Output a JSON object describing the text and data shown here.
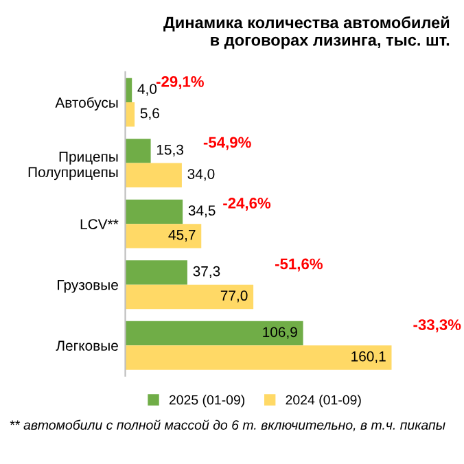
{
  "chart_data": {
    "type": "bar",
    "orientation": "horizontal",
    "title": "Динамика количества автомобилей\nв договорах лизинга, тыс. шт.",
    "categories": [
      "Автобусы",
      "Прицепы\nПолуприцепы",
      "LCV**",
      "Грузовые",
      "Легковые"
    ],
    "series": [
      {
        "name": "2025 (01-09)",
        "color": "#70ad47",
        "values": [
          4.0,
          15.3,
          34.5,
          37.3,
          106.9
        ],
        "value_labels": [
          "4,0",
          "15,3",
          "34,5",
          "37,3",
          "106,9"
        ]
      },
      {
        "name": "2024 (01-09)",
        "color": "#ffd966",
        "values": [
          5.6,
          34.0,
          45.7,
          77.0,
          160.1
        ],
        "value_labels": [
          "5,6",
          "34,0",
          "45,7",
          "77,0",
          "160,1"
        ]
      }
    ],
    "annotations": [
      "-29,1%",
      "-54,9%",
      "-24,6%",
      "-51,6%",
      "-33,3%",
      "** автомобили с полной массой до 6 т. включительно, в т.ч. пикапы"
    ],
    "legend": "bottom",
    "grid": false
  }
}
